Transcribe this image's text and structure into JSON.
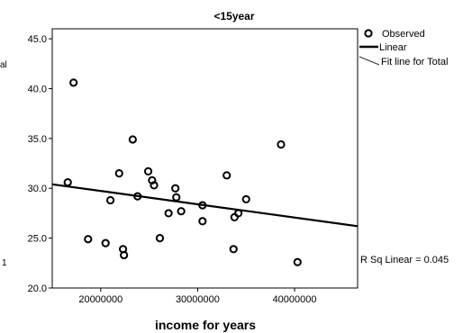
{
  "chart_data": {
    "type": "scatter",
    "title": "<15year",
    "xlabel": "income for years",
    "ylabel": "",
    "xlim": [
      15000000,
      46500000
    ],
    "ylim": [
      20.0,
      46.0
    ],
    "x_ticks": [
      20000000,
      30000000,
      40000000
    ],
    "x_tick_labels": [
      "20000000",
      "30000000",
      "40000000"
    ],
    "y_ticks": [
      20.0,
      25.0,
      30.0,
      35.0,
      40.0,
      45.0
    ],
    "y_tick_labels": [
      "20.0",
      "25.0",
      "30.0",
      "35.0",
      "40.0",
      "45.0"
    ],
    "grid": false,
    "legend_position": "top-right",
    "legend": [
      {
        "label": "Observed"
      },
      {
        "label": "Linear"
      },
      {
        "label": "Fit line for Total"
      }
    ],
    "series": [
      {
        "kind": "points",
        "points": [
          [
            17200000,
            40.6
          ],
          [
            16600000,
            30.6
          ],
          [
            18700000,
            24.9
          ],
          [
            20500000,
            24.5
          ],
          [
            21000000,
            28.8
          ],
          [
            21900000,
            31.5
          ],
          [
            22300000,
            23.9
          ],
          [
            22400000,
            23.3
          ],
          [
            23300000,
            34.9
          ],
          [
            23800000,
            29.2
          ],
          [
            24900000,
            31.7
          ],
          [
            25300000,
            30.8
          ],
          [
            25500000,
            30.3
          ],
          [
            26100000,
            25.0
          ],
          [
            27000000,
            27.5
          ],
          [
            27700000,
            30.0
          ],
          [
            27800000,
            29.1
          ],
          [
            28300000,
            27.7
          ],
          [
            30500000,
            28.3
          ],
          [
            30500000,
            26.7
          ],
          [
            33000000,
            31.3
          ],
          [
            33700000,
            23.9
          ],
          [
            33800000,
            27.1
          ],
          [
            34200000,
            27.5
          ],
          [
            35000000,
            28.9
          ],
          [
            38600000,
            34.4
          ],
          [
            40300000,
            22.6
          ]
        ]
      },
      {
        "kind": "fit-line",
        "points": [
          [
            15000000,
            30.4
          ],
          [
            46500000,
            26.2
          ]
        ]
      }
    ],
    "annotations": {
      "r_sq": "R Sq Linear = 0.045",
      "left_edge_top": "al",
      "left_edge_bottom": "1"
    }
  }
}
